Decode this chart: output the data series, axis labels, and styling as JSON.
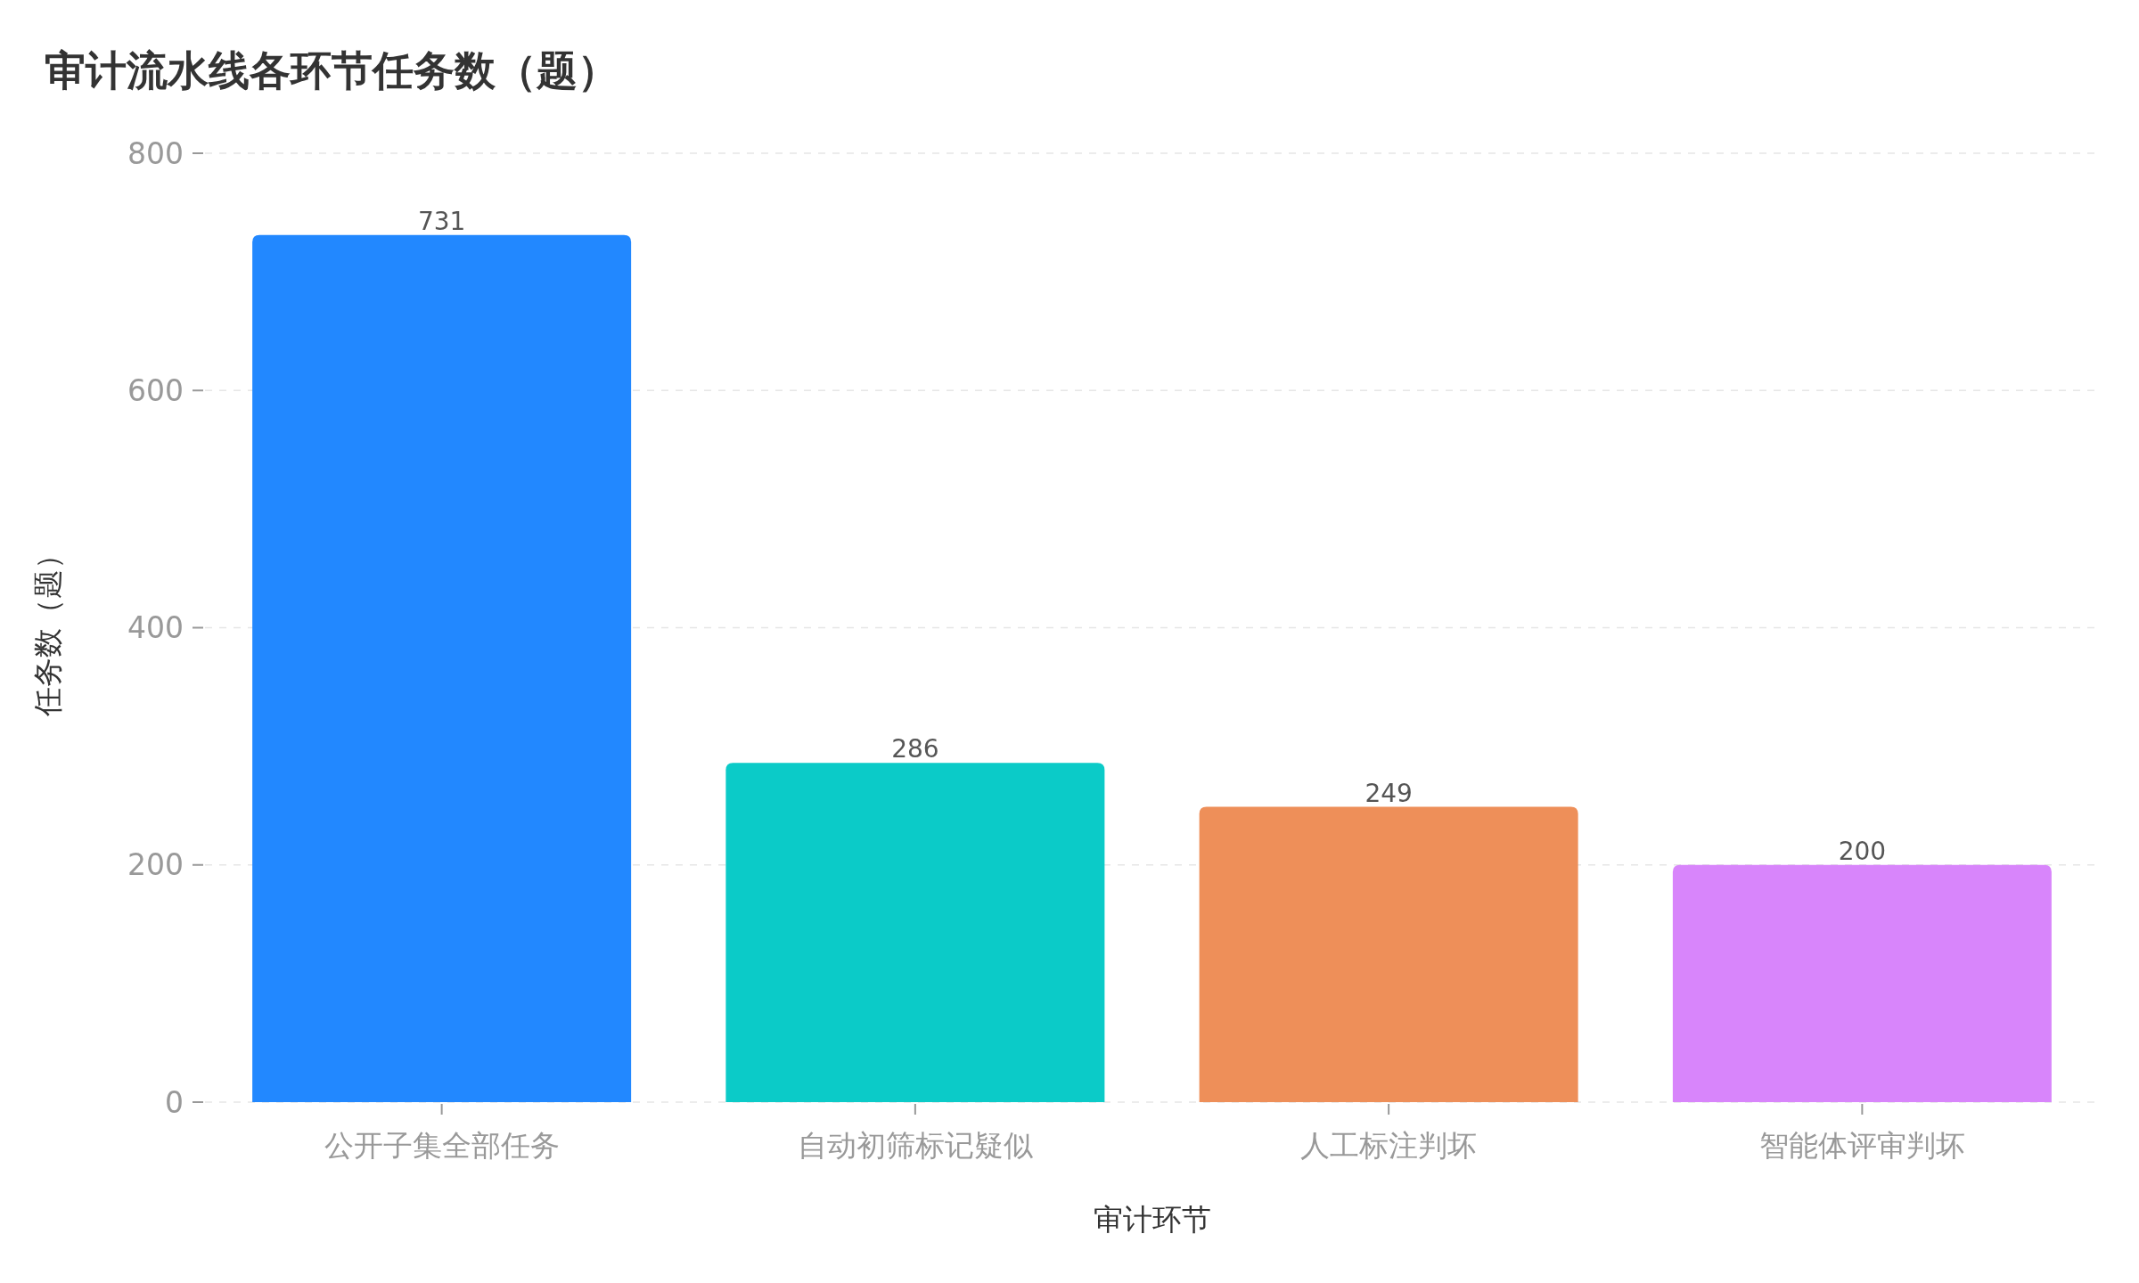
{
  "chart_data": {
    "type": "bar",
    "title": "审计流水线各环节任务数（题）",
    "xlabel": "审计环节",
    "ylabel": "任务数（题）",
    "categories": [
      "公开子集全部任务",
      "自动初筛标记疑似",
      "人工标注判坏",
      "智能体评审判坏"
    ],
    "values": [
      731,
      286,
      249,
      200
    ],
    "colors": [
      "#2288ff",
      "#0bcbc8",
      "#ee8f59",
      "#d885fb"
    ],
    "ylim": [
      0,
      800
    ],
    "yticks": [
      0,
      200,
      400,
      600,
      800
    ],
    "grid": "y",
    "data_labels": true
  }
}
